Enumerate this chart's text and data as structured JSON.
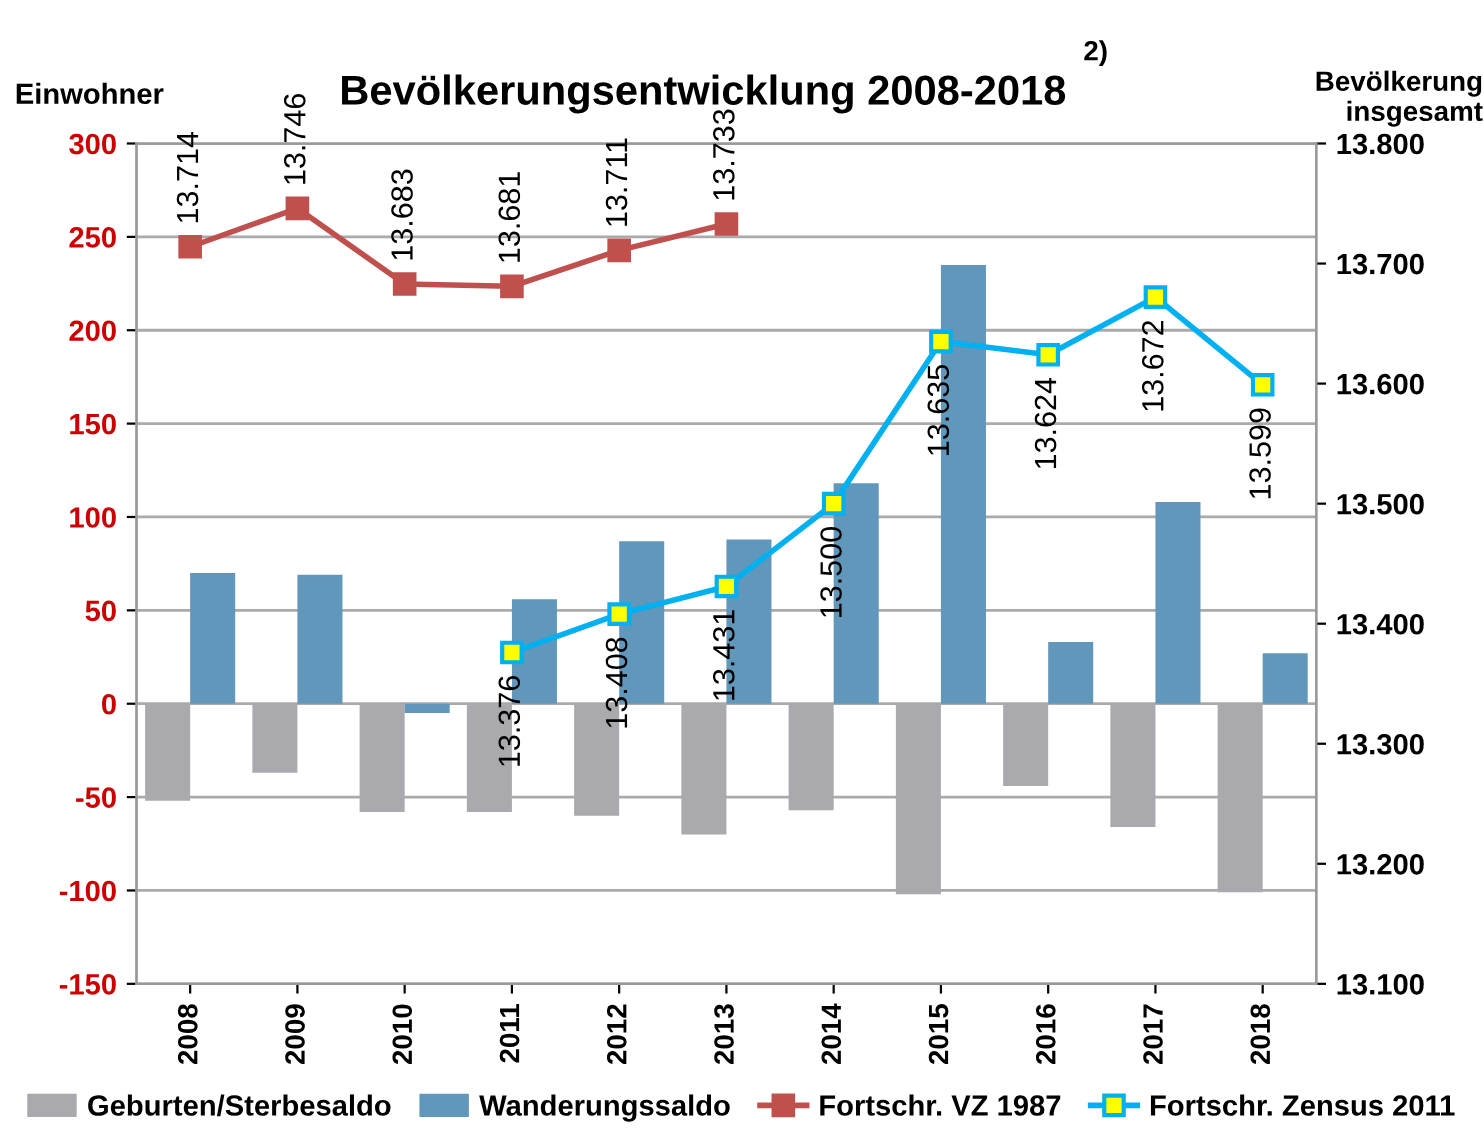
{
  "chart_data": {
    "type": "bar",
    "title": "Bevölkerungsentwicklung 2008-2018",
    "ylabel": "Einwohner",
    "y2label": "Bevölkerung\ninsgesamt",
    "annotations": [
      "2)"
    ],
    "categories": [
      "2008",
      "2009",
      "2010",
      "2011",
      "2012",
      "2013",
      "2014",
      "2015",
      "2016",
      "2017",
      "2018"
    ],
    "series": [
      {
        "name": "Geburten/Sterbesaldo",
        "color": "#a9a9ae",
        "values": [
          -52,
          -37,
          -58,
          -58,
          -60,
          -70,
          -57,
          -102,
          -44,
          -66,
          -101
        ]
      },
      {
        "name": "Wanderungssaldo",
        "color": "#6097bb",
        "values": [
          70,
          69,
          -5,
          56,
          87,
          88,
          118,
          235,
          33,
          108,
          27
        ]
      },
      {
        "name": "Fortschr. VZ 1987",
        "type": "line",
        "axis": "y2",
        "color": "#c0504d",
        "marker": "square",
        "values": [
          13.714,
          13.746,
          13.683,
          13.681,
          13.711,
          13.733,
          null,
          null,
          null,
          null,
          null
        ],
        "value_labels": [
          "13.714",
          "13.746",
          "13.683",
          "13.681",
          "13.711",
          "13.733",
          null,
          null,
          null,
          null,
          null
        ]
      },
      {
        "name": "Fortschr. Zensus 2011",
        "type": "line",
        "axis": "y2",
        "color": "#00b0f0",
        "marker": "square",
        "values": [
          null,
          null,
          null,
          13.376,
          13.408,
          13.431,
          13.5,
          13.635,
          13.624,
          13.672,
          13.599
        ],
        "value_labels": [
          null,
          null,
          null,
          "13.376",
          "13.408",
          "13.431",
          "13.500",
          "13.635",
          "13.624",
          "13.672",
          "13.599"
        ]
      }
    ],
    "ylim": [
      -150,
      300
    ],
    "yticks": [
      -150,
      -100,
      -50,
      0,
      50,
      100,
      150,
      200,
      250,
      300
    ],
    "y2lim": [
      13.1,
      13.8
    ],
    "y2ticks": [
      {
        "value": 13.1,
        "label": "13.100"
      },
      {
        "value": 13.2,
        "label": "13.200"
      },
      {
        "value": 13.3,
        "label": "13.300"
      },
      {
        "value": 13.4,
        "label": "13.400"
      },
      {
        "value": 13.5,
        "label": "13.500"
      },
      {
        "value": 13.6,
        "label": "13.600"
      },
      {
        "value": 13.7,
        "label": "13.700"
      },
      {
        "value": 13.8,
        "label": "13.800"
      }
    ],
    "grid": "y",
    "legend": "bottom"
  }
}
